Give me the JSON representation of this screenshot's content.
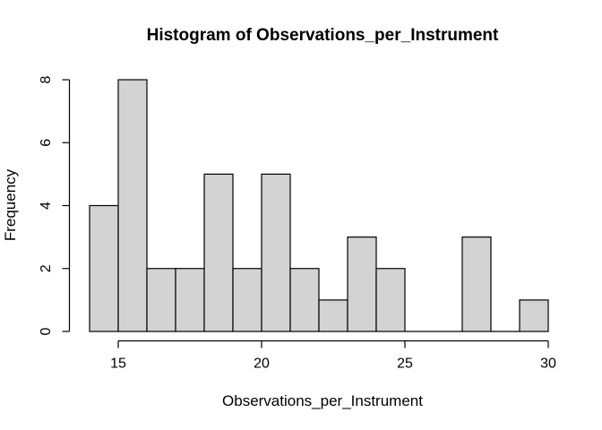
{
  "chart_data": {
    "type": "bar",
    "subtype": "histogram",
    "title": "Histogram of Observations_per_Instrument",
    "xlabel": "Observations_per_Instrument",
    "ylabel": "Frequency",
    "bin_edges": [
      14,
      15,
      16,
      17,
      18,
      19,
      20,
      21,
      22,
      23,
      24,
      25,
      26,
      27,
      28,
      29,
      30
    ],
    "counts": [
      4,
      8,
      2,
      2,
      5,
      2,
      5,
      2,
      1,
      3,
      2,
      0,
      0,
      3,
      0,
      1
    ],
    "x_ticks": [
      15,
      20,
      25,
      30
    ],
    "y_ticks": [
      0,
      2,
      4,
      6,
      8
    ],
    "xlim": [
      14,
      30
    ],
    "ylim": [
      0,
      8
    ],
    "grid": false,
    "legend_position": "none",
    "colors": {
      "bar_fill": "#d3d3d3",
      "bar_stroke": "#000000",
      "axis": "#000000",
      "text": "#000000",
      "background": "#ffffff"
    }
  }
}
